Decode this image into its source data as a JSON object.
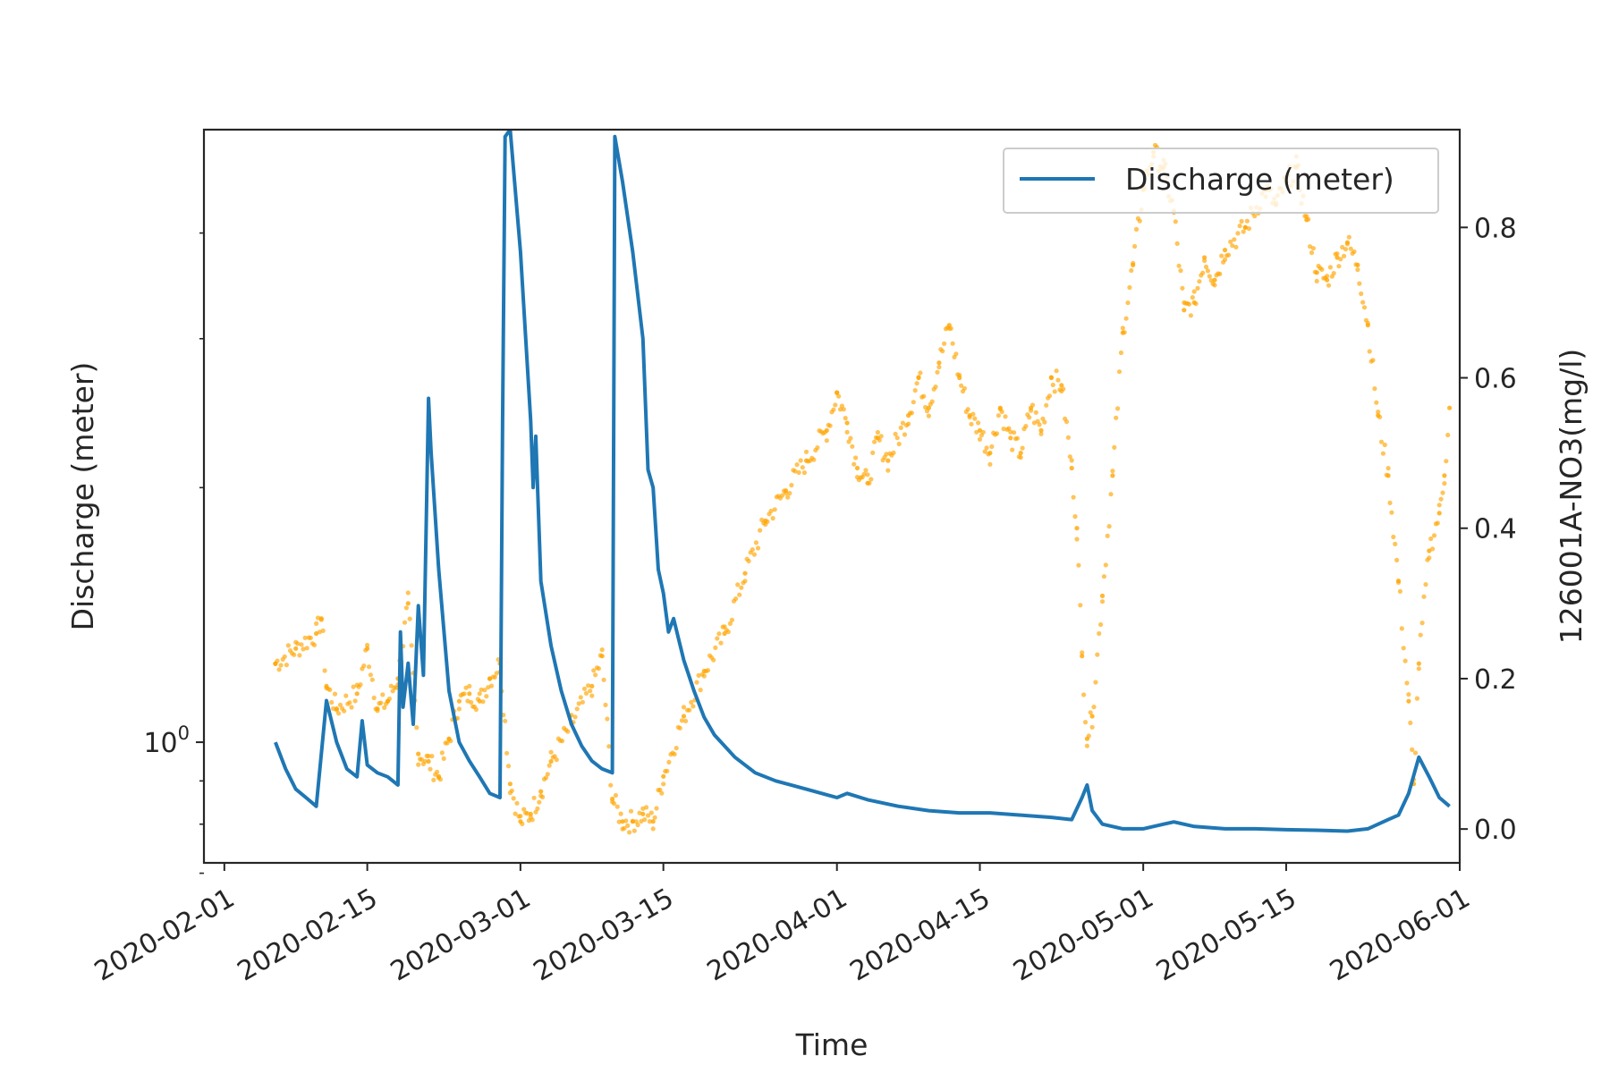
{
  "chart_data": {
    "type": "line",
    "xlabel": "Time",
    "ylabel_left": "Discharge (meter)",
    "ylabel_right": "126001A-NO3(mg/l)",
    "y_left_scale": "log",
    "y_left_tick_label_base": "10",
    "y_left_tick_label_exp": "0",
    "y_left_ticks": [
      1
    ],
    "y_left_minor_ticks": [
      0.7,
      0.8,
      0.9,
      2,
      3,
      4
    ],
    "y_left_range": [
      0.72,
      5.3
    ],
    "y_right_range": [
      -0.045,
      0.93
    ],
    "y_right_ticks": [
      0.0,
      0.2,
      0.4,
      0.6,
      0.8
    ],
    "y_right_tick_labels": [
      "0.0",
      "0.2",
      "0.4",
      "0.6",
      "0.8"
    ],
    "x_range": [
      "2020-01-30",
      "2020-06-01"
    ],
    "x_ticks": [
      "2020-02-01",
      "2020-02-15",
      "2020-03-01",
      "2020-03-15",
      "2020-04-01",
      "2020-04-15",
      "2020-05-01",
      "2020-05-15",
      "2020-06-01"
    ],
    "legend": {
      "position": "top-right",
      "entries": [
        "Discharge (meter)"
      ]
    },
    "grid": false,
    "series": [
      {
        "name": "Discharge (meter)",
        "axis": "left",
        "style": "line",
        "color": "#1f77b4",
        "points": [
          [
            "2020-02-06",
            1.0
          ],
          [
            "2020-02-07",
            0.93
          ],
          [
            "2020-02-08",
            0.88
          ],
          [
            "2020-02-09",
            0.86
          ],
          [
            "2020-02-10",
            0.84
          ],
          [
            "2020-02-10 12:00",
            0.97
          ],
          [
            "2020-02-11",
            1.12
          ],
          [
            "2020-02-12",
            1.0
          ],
          [
            "2020-02-13",
            0.93
          ],
          [
            "2020-02-14",
            0.91
          ],
          [
            "2020-02-14 12:00",
            1.06
          ],
          [
            "2020-02-15",
            0.94
          ],
          [
            "2020-02-16",
            0.92
          ],
          [
            "2020-02-17",
            0.91
          ],
          [
            "2020-02-18",
            0.89
          ],
          [
            "2020-02-18 06:00",
            1.35
          ],
          [
            "2020-02-18 12:00",
            1.1
          ],
          [
            "2020-02-19",
            1.24
          ],
          [
            "2020-02-19 12:00",
            1.05
          ],
          [
            "2020-02-20",
            1.45
          ],
          [
            "2020-02-20 12:00",
            1.2
          ],
          [
            "2020-02-21",
            2.55
          ],
          [
            "2020-02-21 06:00",
            2.2
          ],
          [
            "2020-02-22",
            1.6
          ],
          [
            "2020-02-23",
            1.15
          ],
          [
            "2020-02-24",
            1.0
          ],
          [
            "2020-02-25",
            0.95
          ],
          [
            "2020-02-26",
            0.91
          ],
          [
            "2020-02-27",
            0.87
          ],
          [
            "2020-02-28",
            0.86
          ],
          [
            "2020-02-28 06:00",
            2.4
          ],
          [
            "2020-02-28 12:00",
            5.2
          ],
          [
            "2020-02-29",
            5.3
          ],
          [
            "2020-03-01",
            3.8
          ],
          [
            "2020-03-02",
            2.4
          ],
          [
            "2020-03-02 06:00",
            2.0
          ],
          [
            "2020-03-02 12:00",
            2.3
          ],
          [
            "2020-03-03",
            1.55
          ],
          [
            "2020-03-04",
            1.3
          ],
          [
            "2020-03-05",
            1.15
          ],
          [
            "2020-03-06",
            1.05
          ],
          [
            "2020-03-07",
            0.99
          ],
          [
            "2020-03-08",
            0.95
          ],
          [
            "2020-03-09",
            0.93
          ],
          [
            "2020-03-10",
            0.92
          ],
          [
            "2020-03-10 06:00",
            5.2
          ],
          [
            "2020-03-11",
            4.6
          ],
          [
            "2020-03-12",
            3.8
          ],
          [
            "2020-03-13",
            3.0
          ],
          [
            "2020-03-13 12:00",
            2.1
          ],
          [
            "2020-03-14",
            2.0
          ],
          [
            "2020-03-14 12:00",
            1.6
          ],
          [
            "2020-03-15",
            1.5
          ],
          [
            "2020-03-15 12:00",
            1.35
          ],
          [
            "2020-03-16",
            1.4
          ],
          [
            "2020-03-17",
            1.25
          ],
          [
            "2020-03-18",
            1.15
          ],
          [
            "2020-03-19",
            1.07
          ],
          [
            "2020-03-20",
            1.02
          ],
          [
            "2020-03-22",
            0.96
          ],
          [
            "2020-03-24",
            0.92
          ],
          [
            "2020-03-26",
            0.9
          ],
          [
            "2020-03-29",
            0.88
          ],
          [
            "2020-04-01",
            0.86
          ],
          [
            "2020-04-02",
            0.87
          ],
          [
            "2020-04-04",
            0.855
          ],
          [
            "2020-04-07",
            0.84
          ],
          [
            "2020-04-10",
            0.83
          ],
          [
            "2020-04-13",
            0.825
          ],
          [
            "2020-04-16",
            0.825
          ],
          [
            "2020-04-19",
            0.82
          ],
          [
            "2020-04-22",
            0.815
          ],
          [
            "2020-04-24",
            0.81
          ],
          [
            "2020-04-25",
            0.86
          ],
          [
            "2020-04-25 12:00",
            0.89
          ],
          [
            "2020-04-26",
            0.83
          ],
          [
            "2020-04-27",
            0.8
          ],
          [
            "2020-04-29",
            0.79
          ],
          [
            "2020-05-01",
            0.79
          ],
          [
            "2020-05-03",
            0.8
          ],
          [
            "2020-05-04",
            0.805
          ],
          [
            "2020-05-06",
            0.795
          ],
          [
            "2020-05-09",
            0.79
          ],
          [
            "2020-05-12",
            0.79
          ],
          [
            "2020-05-15",
            0.788
          ],
          [
            "2020-05-18",
            0.787
          ],
          [
            "2020-05-21",
            0.785
          ],
          [
            "2020-05-23",
            0.79
          ],
          [
            "2020-05-25",
            0.81
          ],
          [
            "2020-05-26",
            0.82
          ],
          [
            "2020-05-27",
            0.87
          ],
          [
            "2020-05-28",
            0.96
          ],
          [
            "2020-05-29",
            0.91
          ],
          [
            "2020-05-30",
            0.86
          ],
          [
            "2020-05-31",
            0.84
          ]
        ]
      },
      {
        "name": "126001A-NO3(mg/l)",
        "axis": "right",
        "style": "scatter",
        "color": "#ffa500",
        "points": [
          [
            "2020-02-06",
            0.22
          ],
          [
            "2020-02-08",
            0.24
          ],
          [
            "2020-02-10",
            0.26
          ],
          [
            "2020-02-10 12:00",
            0.28
          ],
          [
            "2020-02-11",
            0.19
          ],
          [
            "2020-02-12",
            0.16
          ],
          [
            "2020-02-14",
            0.18
          ],
          [
            "2020-02-15",
            0.24
          ],
          [
            "2020-02-16",
            0.16
          ],
          [
            "2020-02-17",
            0.17
          ],
          [
            "2020-02-18",
            0.2
          ],
          [
            "2020-02-19",
            0.3
          ],
          [
            "2020-02-20",
            0.1
          ],
          [
            "2020-02-21",
            0.09
          ],
          [
            "2020-02-22",
            0.07
          ],
          [
            "2020-02-23",
            0.12
          ],
          [
            "2020-02-24",
            0.17
          ],
          [
            "2020-02-25",
            0.18
          ],
          [
            "2020-02-26",
            0.17
          ],
          [
            "2020-02-27",
            0.2
          ],
          [
            "2020-02-28",
            0.22
          ],
          [
            "2020-02-29",
            0.06
          ],
          [
            "2020-03-01",
            0.01
          ],
          [
            "2020-03-02",
            0.02
          ],
          [
            "2020-03-03",
            0.05
          ],
          [
            "2020-03-04",
            0.09
          ],
          [
            "2020-03-06",
            0.14
          ],
          [
            "2020-03-08",
            0.19
          ],
          [
            "2020-03-09",
            0.23
          ],
          [
            "2020-03-10",
            0.04
          ],
          [
            "2020-03-11",
            0.01
          ],
          [
            "2020-03-12",
            0.01
          ],
          [
            "2020-03-13",
            0.02
          ],
          [
            "2020-03-14",
            0.01
          ],
          [
            "2020-03-15",
            0.07
          ],
          [
            "2020-03-17",
            0.15
          ],
          [
            "2020-03-19",
            0.21
          ],
          [
            "2020-03-21",
            0.26
          ],
          [
            "2020-03-23",
            0.34
          ],
          [
            "2020-03-25",
            0.41
          ],
          [
            "2020-03-27",
            0.45
          ],
          [
            "2020-03-29",
            0.49
          ],
          [
            "2020-03-31",
            0.53
          ],
          [
            "2020-04-01",
            0.58
          ],
          [
            "2020-04-02",
            0.54
          ],
          [
            "2020-04-03",
            0.48
          ],
          [
            "2020-04-04",
            0.46
          ],
          [
            "2020-04-05",
            0.52
          ],
          [
            "2020-04-06",
            0.49
          ],
          [
            "2020-04-08",
            0.55
          ],
          [
            "2020-04-09",
            0.6
          ],
          [
            "2020-04-10",
            0.56
          ],
          [
            "2020-04-11",
            0.62
          ],
          [
            "2020-04-12",
            0.67
          ],
          [
            "2020-04-13",
            0.6
          ],
          [
            "2020-04-14",
            0.55
          ],
          [
            "2020-04-15",
            0.53
          ],
          [
            "2020-04-16",
            0.5
          ],
          [
            "2020-04-17",
            0.56
          ],
          [
            "2020-04-18",
            0.52
          ],
          [
            "2020-04-19",
            0.5
          ],
          [
            "2020-04-20",
            0.56
          ],
          [
            "2020-04-21",
            0.53
          ],
          [
            "2020-04-22",
            0.6
          ],
          [
            "2020-04-23",
            0.59
          ],
          [
            "2020-04-24",
            0.48
          ],
          [
            "2020-04-24 12:00",
            0.4
          ],
          [
            "2020-04-25",
            0.23
          ],
          [
            "2020-04-25 12:00",
            0.12
          ],
          [
            "2020-04-26",
            0.15
          ],
          [
            "2020-04-27",
            0.31
          ],
          [
            "2020-04-28",
            0.47
          ],
          [
            "2020-04-29",
            0.66
          ],
          [
            "2020-04-30",
            0.75
          ],
          [
            "2020-05-01",
            0.85
          ],
          [
            "2020-05-02",
            0.9
          ],
          [
            "2020-05-03",
            0.88
          ],
          [
            "2020-05-04",
            0.82
          ],
          [
            "2020-05-05",
            0.69
          ],
          [
            "2020-05-06",
            0.7
          ],
          [
            "2020-05-07",
            0.76
          ],
          [
            "2020-05-08",
            0.73
          ],
          [
            "2020-05-09",
            0.77
          ],
          [
            "2020-05-11",
            0.8
          ],
          [
            "2020-05-13",
            0.85
          ],
          [
            "2020-05-14",
            0.83
          ],
          [
            "2020-05-15",
            0.86
          ],
          [
            "2020-05-16",
            0.88
          ],
          [
            "2020-05-17",
            0.81
          ],
          [
            "2020-05-18",
            0.74
          ],
          [
            "2020-05-19",
            0.73
          ],
          [
            "2020-05-20",
            0.76
          ],
          [
            "2020-05-21",
            0.78
          ],
          [
            "2020-05-22",
            0.75
          ],
          [
            "2020-05-23",
            0.67
          ],
          [
            "2020-05-24",
            0.55
          ],
          [
            "2020-05-25",
            0.47
          ],
          [
            "2020-05-26",
            0.33
          ],
          [
            "2020-05-27",
            0.17
          ],
          [
            "2020-05-27 12:00",
            0.06
          ],
          [
            "2020-05-28",
            0.22
          ],
          [
            "2020-05-29",
            0.37
          ],
          [
            "2020-05-30",
            0.42
          ],
          [
            "2020-05-30 12:00",
            0.47
          ],
          [
            "2020-05-31",
            0.56
          ]
        ]
      }
    ]
  }
}
